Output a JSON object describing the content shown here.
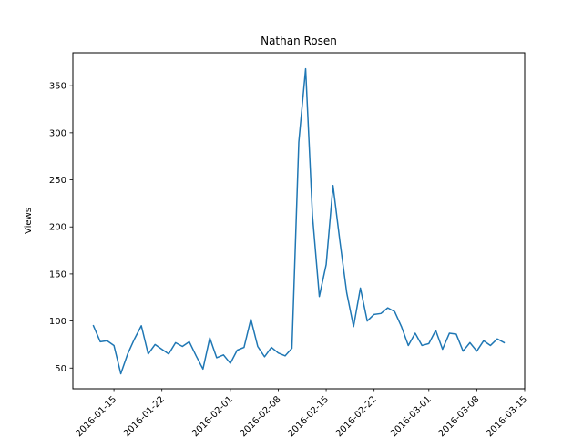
{
  "chart_data": {
    "type": "line",
    "title": "Nathan Rosen",
    "xlabel": "",
    "ylabel": "Views",
    "x": [
      "2016-01-12",
      "2016-01-13",
      "2016-01-14",
      "2016-01-15",
      "2016-01-16",
      "2016-01-17",
      "2016-01-18",
      "2016-01-19",
      "2016-01-20",
      "2016-01-21",
      "2016-01-22",
      "2016-01-23",
      "2016-01-24",
      "2016-01-25",
      "2016-01-26",
      "2016-01-27",
      "2016-01-28",
      "2016-01-29",
      "2016-01-30",
      "2016-01-31",
      "2016-02-01",
      "2016-02-02",
      "2016-02-03",
      "2016-02-04",
      "2016-02-05",
      "2016-02-06",
      "2016-02-07",
      "2016-02-08",
      "2016-02-09",
      "2016-02-10",
      "2016-02-11",
      "2016-02-12",
      "2016-02-13",
      "2016-02-14",
      "2016-02-15",
      "2016-02-16",
      "2016-02-17",
      "2016-02-18",
      "2016-02-19",
      "2016-02-20",
      "2016-02-21",
      "2016-02-22",
      "2016-02-23",
      "2016-02-24",
      "2016-02-25",
      "2016-02-26",
      "2016-02-27",
      "2016-02-28",
      "2016-02-29",
      "2016-03-01",
      "2016-03-02",
      "2016-03-03",
      "2016-03-04",
      "2016-03-05",
      "2016-03-06",
      "2016-03-07",
      "2016-03-08",
      "2016-03-09",
      "2016-03-10",
      "2016-03-11",
      "2016-03-12",
      "2016-03-13"
    ],
    "series": [
      {
        "name": "",
        "color": "#1f77b4",
        "values": [
          95,
          78,
          79,
          74,
          44,
          65,
          81,
          95,
          65,
          75,
          70,
          65,
          77,
          73,
          78,
          63,
          49,
          82,
          61,
          64,
          55,
          69,
          72,
          102,
          73,
          62,
          72,
          66,
          63,
          71,
          290,
          368,
          212,
          126,
          160,
          244,
          185,
          130,
          94,
          135,
          100,
          107,
          108,
          114,
          110,
          94,
          74,
          87,
          74,
          76,
          90,
          70,
          87,
          86,
          68,
          77,
          68,
          79,
          74,
          81,
          77,
          null
        ]
      }
    ],
    "xticks": [
      "2016-01-15",
      "2016-01-22",
      "2016-02-01",
      "2016-02-08",
      "2016-02-15",
      "2016-02-22",
      "2016-03-01",
      "2016-03-08",
      "2016-03-15"
    ],
    "yticks": [
      50,
      100,
      150,
      200,
      250,
      300,
      350
    ],
    "xlim": [
      "2016-01-09",
      "2016-03-15"
    ],
    "ylim": [
      28,
      385
    ],
    "grid": false,
    "legend": "none"
  }
}
